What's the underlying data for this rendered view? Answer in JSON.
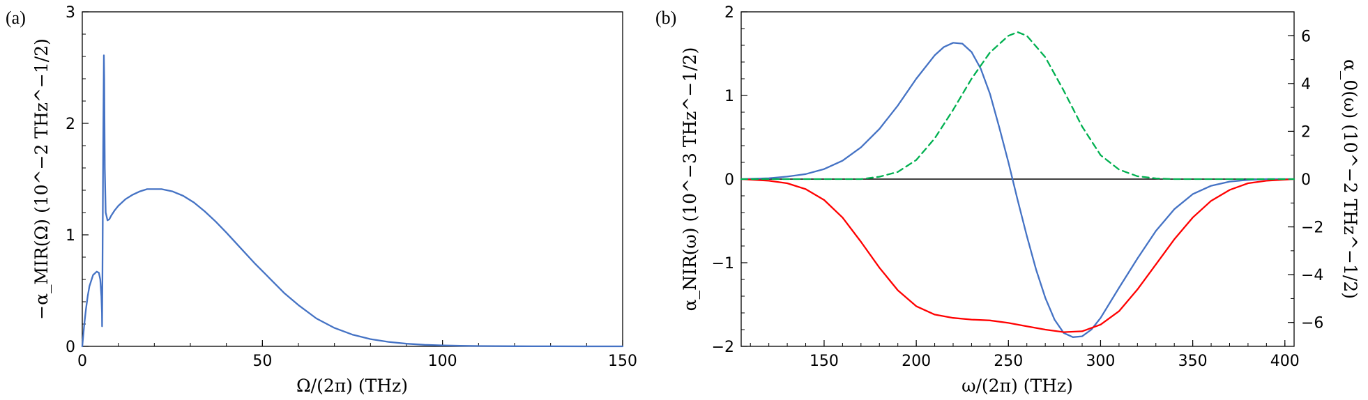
{
  "chart_data": [
    {
      "panel": "(a)",
      "type": "line",
      "xlabel": "Ω/(2π) (THz)",
      "ylabel": "−α_MIR(Ω) (10^−2 THz^−1/2)",
      "xlim": [
        0,
        150
      ],
      "ylim": [
        0,
        3
      ],
      "xticks": [
        "0",
        "50",
        "100",
        "150"
      ],
      "yticks": [
        "0",
        "1",
        "2",
        "3"
      ],
      "grid": false,
      "series": [
        {
          "color": "#4472c4",
          "style": "solid",
          "x": [
            0,
            0.5,
            1,
            1.5,
            2,
            3,
            4,
            4.6,
            5.0,
            5.3,
            5.45,
            5.5,
            5.6,
            5.8,
            6.0,
            6.1,
            6.25,
            6.5,
            7,
            7.5,
            8,
            9,
            10,
            12,
            14,
            16,
            18,
            20,
            22,
            25,
            28,
            31,
            34,
            37,
            40,
            44,
            48,
            52,
            56,
            60,
            65,
            70,
            75,
            80,
            85,
            90,
            95,
            100,
            105,
            110,
            120,
            130,
            140,
            150
          ],
          "values": [
            0,
            0.18,
            0.33,
            0.45,
            0.54,
            0.64,
            0.67,
            0.66,
            0.6,
            0.45,
            0.3,
            0.18,
            0.6,
            1.8,
            2.61,
            2.4,
            1.6,
            1.2,
            1.13,
            1.14,
            1.17,
            1.22,
            1.26,
            1.32,
            1.36,
            1.39,
            1.41,
            1.41,
            1.41,
            1.39,
            1.35,
            1.29,
            1.21,
            1.12,
            1.02,
            0.88,
            0.74,
            0.61,
            0.48,
            0.37,
            0.25,
            0.165,
            0.105,
            0.065,
            0.04,
            0.024,
            0.014,
            0.008,
            0.005,
            0.003,
            0.001,
            0.0005,
            0.0002,
            0
          ]
        }
      ]
    },
    {
      "panel": "(b)",
      "type": "line",
      "xlabel": "ω/(2π) (THz)",
      "ylabel": "α_NIR(ω) (10^−3 THz^−1/2)",
      "y2label": "α_0(ω) (10^−2 THz^−1/2)",
      "xlim": [
        105,
        405
      ],
      "ylim": [
        -2,
        2
      ],
      "y2lim": [
        -7,
        7
      ],
      "xticks": [
        "150",
        "200",
        "250",
        "300",
        "350",
        "400"
      ],
      "yticks": [
        "−2",
        "−1",
        "0",
        "1",
        "2"
      ],
      "y2ticks": [
        "−6",
        "−4",
        "−2",
        "0",
        "2",
        "4",
        "6"
      ],
      "zero_line": true,
      "grid": false,
      "series": [
        {
          "axis": "left",
          "color": "#4472c4",
          "style": "solid",
          "x": [
            105,
            120,
            130,
            140,
            150,
            160,
            170,
            180,
            190,
            200,
            210,
            215,
            220,
            225,
            230,
            235,
            240,
            245,
            250,
            255,
            260,
            265,
            270,
            275,
            280,
            285,
            290,
            295,
            300,
            310,
            320,
            330,
            340,
            350,
            360,
            370,
            380,
            390,
            405
          ],
          "values": [
            0,
            0.01,
            0.03,
            0.06,
            0.12,
            0.22,
            0.38,
            0.6,
            0.88,
            1.2,
            1.48,
            1.58,
            1.63,
            1.62,
            1.52,
            1.32,
            1.02,
            0.62,
            0.2,
            -0.25,
            -0.68,
            -1.08,
            -1.42,
            -1.68,
            -1.84,
            -1.89,
            -1.88,
            -1.8,
            -1.66,
            -1.3,
            -0.95,
            -0.62,
            -0.36,
            -0.18,
            -0.08,
            -0.03,
            -0.01,
            0,
            0
          ]
        },
        {
          "axis": "left",
          "color": "#ff0000",
          "style": "solid",
          "x": [
            105,
            120,
            130,
            140,
            150,
            160,
            170,
            180,
            190,
            200,
            210,
            220,
            230,
            240,
            250,
            260,
            270,
            280,
            290,
            300,
            310,
            320,
            330,
            340,
            350,
            360,
            370,
            380,
            390,
            405
          ],
          "values": [
            0,
            -0.02,
            -0.05,
            -0.12,
            -0.25,
            -0.46,
            -0.75,
            -1.06,
            -1.33,
            -1.52,
            -1.62,
            -1.66,
            -1.68,
            -1.69,
            -1.72,
            -1.76,
            -1.8,
            -1.83,
            -1.82,
            -1.74,
            -1.58,
            -1.32,
            -1.02,
            -0.72,
            -0.46,
            -0.26,
            -0.13,
            -0.05,
            -0.02,
            0
          ]
        },
        {
          "axis": "right",
          "color": "#00b050",
          "style": "dashed",
          "x": [
            105,
            170,
            180,
            190,
            200,
            210,
            220,
            230,
            240,
            250,
            255,
            260,
            270,
            280,
            290,
            300,
            310,
            320,
            330,
            340,
            405
          ],
          "values": [
            0,
            0,
            0.1,
            0.3,
            0.8,
            1.7,
            2.9,
            4.2,
            5.3,
            6.0,
            6.15,
            6.0,
            5.1,
            3.7,
            2.2,
            1.0,
            0.4,
            0.12,
            0.03,
            0,
            0
          ]
        }
      ]
    }
  ]
}
